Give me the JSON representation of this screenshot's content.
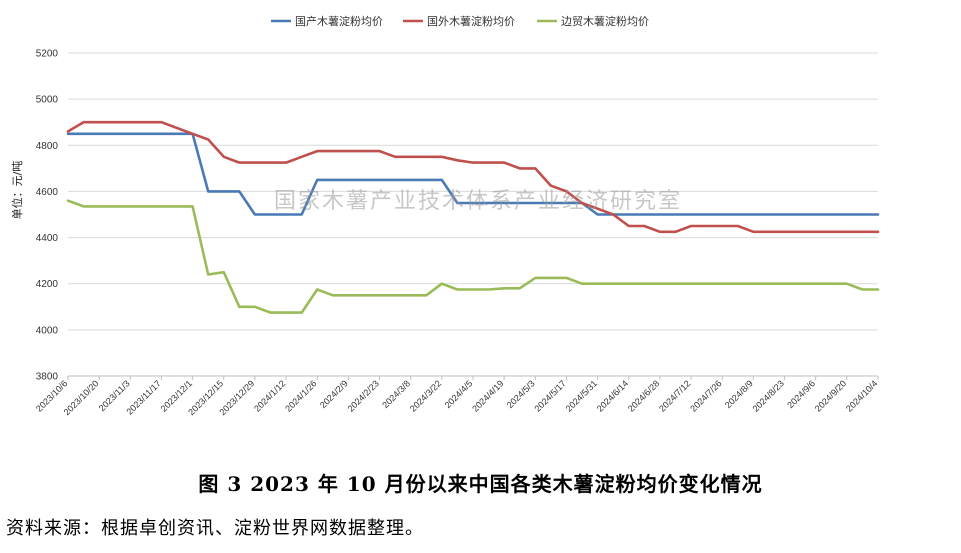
{
  "chart_data": {
    "type": "line",
    "ylabel": "单位：元/吨",
    "ylim": [
      3800,
      5200
    ],
    "yticks": [
      3800,
      4000,
      4200,
      4400,
      4600,
      4800,
      5000,
      5200
    ],
    "grid": true,
    "legend_position": "top-center",
    "watermark": "国家木薯产业技术体系产业经济研究室",
    "x_tick_labels": [
      "2023/10/6",
      "2023/10/20",
      "2023/11/3",
      "2023/11/17",
      "2023/12/1",
      "2023/12/15",
      "2023/12/29",
      "2024/1/12",
      "2024/1/26",
      "2024/2/9",
      "2024/2/23",
      "2024/3/8",
      "2024/3/22",
      "2024/4/5",
      "2024/4/19",
      "2024/5/3",
      "2024/5/17",
      "2024/5/31",
      "2024/6/14",
      "2024/6/28",
      "2024/7/12",
      "2024/7/26",
      "2024/8/9",
      "2024/8/23",
      "2024/9/6",
      "2024/9/20",
      "2024/10/4"
    ],
    "x": [
      "2023/10/6",
      "2023/10/13",
      "2023/10/20",
      "2023/10/27",
      "2023/11/3",
      "2023/11/10",
      "2023/11/17",
      "2023/11/24",
      "2023/12/1",
      "2023/12/8",
      "2023/12/15",
      "2023/12/22",
      "2023/12/29",
      "2024/1/5",
      "2024/1/12",
      "2024/1/19",
      "2024/1/26",
      "2024/2/2",
      "2024/2/9",
      "2024/2/16",
      "2024/2/23",
      "2024/3/1",
      "2024/3/8",
      "2024/3/15",
      "2024/3/22",
      "2024/3/29",
      "2024/4/5",
      "2024/4/12",
      "2024/4/19",
      "2024/4/26",
      "2024/5/3",
      "2024/5/10",
      "2024/5/17",
      "2024/5/24",
      "2024/5/31",
      "2024/6/7",
      "2024/6/14",
      "2024/6/21",
      "2024/6/28",
      "2024/7/5",
      "2024/7/12",
      "2024/7/19",
      "2024/7/26",
      "2024/8/2",
      "2024/8/9",
      "2024/8/16",
      "2024/8/23",
      "2024/8/30",
      "2024/9/6",
      "2024/9/13",
      "2024/9/20",
      "2024/9/27",
      "2024/10/4"
    ],
    "series": [
      {
        "name": "国产木薯淀粉均价",
        "color": "#4a7ab5",
        "values": [
          4850,
          4850,
          4850,
          4850,
          4850,
          4850,
          4850,
          4850,
          4850,
          4600,
          4600,
          4600,
          4500,
          4500,
          4500,
          4500,
          4650,
          4650,
          4650,
          4650,
          4650,
          4650,
          4650,
          4650,
          4650,
          4550,
          4550,
          4550,
          4550,
          4550,
          4550,
          4550,
          4550,
          4550,
          4500,
          4500,
          4500,
          4500,
          4500,
          4500,
          4500,
          4500,
          4500,
          4500,
          4500,
          4500,
          4500,
          4500,
          4500,
          4500,
          4500,
          4500,
          4500
        ]
      },
      {
        "name": "国外木薯淀粉均价",
        "color": "#c0504d",
        "values": [
          4860,
          4900,
          4900,
          4900,
          4900,
          4900,
          4900,
          4875,
          4850,
          4825,
          4750,
          4725,
          4725,
          4725,
          4725,
          4750,
          4775,
          4775,
          4775,
          4775,
          4775,
          4750,
          4750,
          4750,
          4750,
          4735,
          4725,
          4725,
          4725,
          4700,
          4700,
          4625,
          4600,
          4550,
          4525,
          4500,
          4450,
          4450,
          4425,
          4425,
          4450,
          4450,
          4450,
          4450,
          4425,
          4425,
          4425,
          4425,
          4425,
          4425,
          4425,
          4425,
          4425
        ]
      },
      {
        "name": "边贸木薯淀粉均价",
        "color": "#9bbb59",
        "values": [
          4560,
          4535,
          4535,
          4535,
          4535,
          4535,
          4535,
          4535,
          4535,
          4240,
          4250,
          4100,
          4100,
          4075,
          4075,
          4075,
          4175,
          4150,
          4150,
          4150,
          4150,
          4150,
          4150,
          4150,
          4200,
          4175,
          4175,
          4175,
          4180,
          4180,
          4225,
          4225,
          4225,
          4200,
          4200,
          4200,
          4200,
          4200,
          4200,
          4200,
          4200,
          4200,
          4200,
          4200,
          4200,
          4200,
          4200,
          4200,
          4200,
          4200,
          4200,
          4175,
          4175
        ]
      }
    ]
  },
  "caption": "图 3   2023 年 10 月份以来中国各类木薯淀粉均价变化情况",
  "source": "资料来源：根据卓创资讯、淀粉世界网数据整理。"
}
